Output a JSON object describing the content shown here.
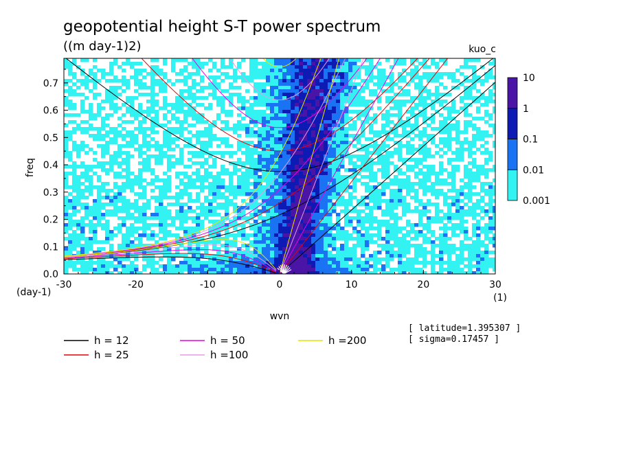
{
  "chart_data": {
    "type": "heatmap",
    "title": "geopotential height S-T power spectrum",
    "subtitle": "((m day-1)2)",
    "run_label": "kuo_c",
    "xlabel": "wvn",
    "ylabel": "freq",
    "x_unit": "(1)",
    "y_unit": "(day-1)",
    "xlim": [
      -30,
      30
    ],
    "ylim": [
      0,
      0.79
    ],
    "xticks": [
      "-30",
      "-20",
      "-10",
      "0",
      "10",
      "20",
      "30"
    ],
    "yticks": [
      "0.0",
      "0.1",
      "0.2",
      "0.3",
      "0.4",
      "0.5",
      "0.6",
      "0.7"
    ],
    "colorbar": {
      "scale": "log",
      "levels": [
        "0.001",
        "0.01",
        "0.1",
        "1",
        "10"
      ],
      "colors": [
        "#33f2f2",
        "#1a73f2",
        "#0d1ab3",
        "#4a14a6"
      ]
    },
    "background_color": "#ffffff",
    "dispersion_curves": [
      {
        "label": "h = 12",
        "h": 12,
        "color": "#000000"
      },
      {
        "label": "h = 25",
        "h": 25,
        "color": "#e60000"
      },
      {
        "label": "h = 50",
        "h": 50,
        "color": "#e600e6"
      },
      {
        "label": "h =100",
        "h": 100,
        "color": "#e699e6"
      },
      {
        "label": "h =200",
        "h": 200,
        "color": "#e6e600"
      }
    ],
    "annotations": [
      "[ latitude=1.395307 ]",
      "[ sigma=0.17457 ]"
    ]
  }
}
